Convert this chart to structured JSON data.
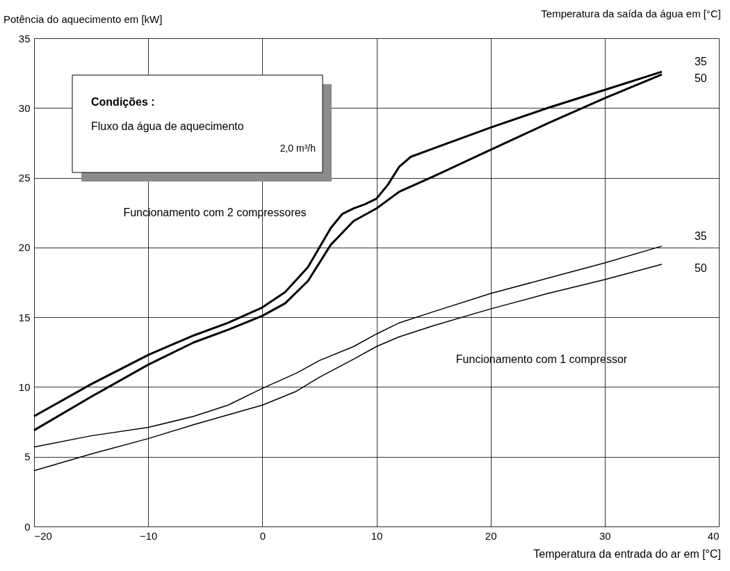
{
  "chart_data": {
    "type": "line",
    "ylabel": "Potência do aquecimento em [kW]",
    "xlabel": "Temperatura da entrada do ar em [°C]",
    "legend_title": "Temperatura da saída da água em [°C]",
    "xlim": [
      -20,
      40
    ],
    "xticks": [
      -20,
      -10,
      0,
      10,
      20,
      30,
      40
    ],
    "ylim": [
      0,
      35
    ],
    "yticks": [
      0,
      5,
      10,
      15,
      20,
      25,
      30,
      35
    ],
    "grid": true,
    "marker": "none",
    "line_style": "solid",
    "series": [
      {
        "name": "35",
        "color": "#000000",
        "x": [
          -20,
          -15,
          -10,
          -6,
          -3,
          0,
          2,
          4,
          6,
          7,
          8,
          9,
          10,
          11,
          12,
          13,
          15,
          20,
          25,
          30,
          35
        ],
        "values": [
          7.9,
          10.2,
          12.3,
          13.7,
          14.6,
          15.7,
          16.8,
          18.6,
          21.4,
          22.4,
          22.8,
          23.1,
          23.5,
          24.5,
          25.8,
          26.5,
          27.1,
          28.6,
          30.0,
          31.3,
          32.6
        ]
      },
      {
        "name": "50",
        "color": "#000000",
        "x": [
          -20,
          -15,
          -10,
          -6,
          -3,
          0,
          2,
          4,
          6,
          8,
          10,
          12,
          15,
          20,
          25,
          30,
          35
        ],
        "values": [
          6.9,
          9.3,
          11.6,
          13.2,
          14.1,
          15.1,
          16.0,
          17.6,
          20.2,
          21.9,
          22.8,
          24.0,
          25.1,
          27.0,
          28.9,
          30.7,
          32.4
        ]
      },
      {
        "name": "35",
        "color": "#000000",
        "x": [
          -20,
          -15,
          -10,
          -6,
          -3,
          0,
          3,
          5,
          8,
          10,
          12,
          15,
          20,
          25,
          30,
          35
        ],
        "values": [
          5.7,
          6.5,
          7.1,
          7.9,
          8.7,
          9.9,
          11.0,
          11.9,
          12.9,
          13.8,
          14.6,
          15.4,
          16.7,
          17.8,
          18.9,
          20.1
        ]
      },
      {
        "name": "50",
        "color": "#000000",
        "x": [
          -20,
          -15,
          -10,
          -6,
          -3,
          0,
          3,
          5,
          8,
          10,
          12,
          15,
          20,
          25,
          30,
          35
        ],
        "values": [
          4.0,
          5.2,
          6.3,
          7.3,
          8.0,
          8.7,
          9.7,
          10.7,
          12.0,
          12.9,
          13.6,
          14.4,
          15.6,
          16.7,
          17.7,
          18.8
        ]
      }
    ],
    "annotations": [
      "Condições :",
      "Fluxo da água de aquecimento",
      "2,0 m³/h",
      "Funcionamento com 2 compressores",
      "Funcionamento com 1 compressor"
    ]
  }
}
